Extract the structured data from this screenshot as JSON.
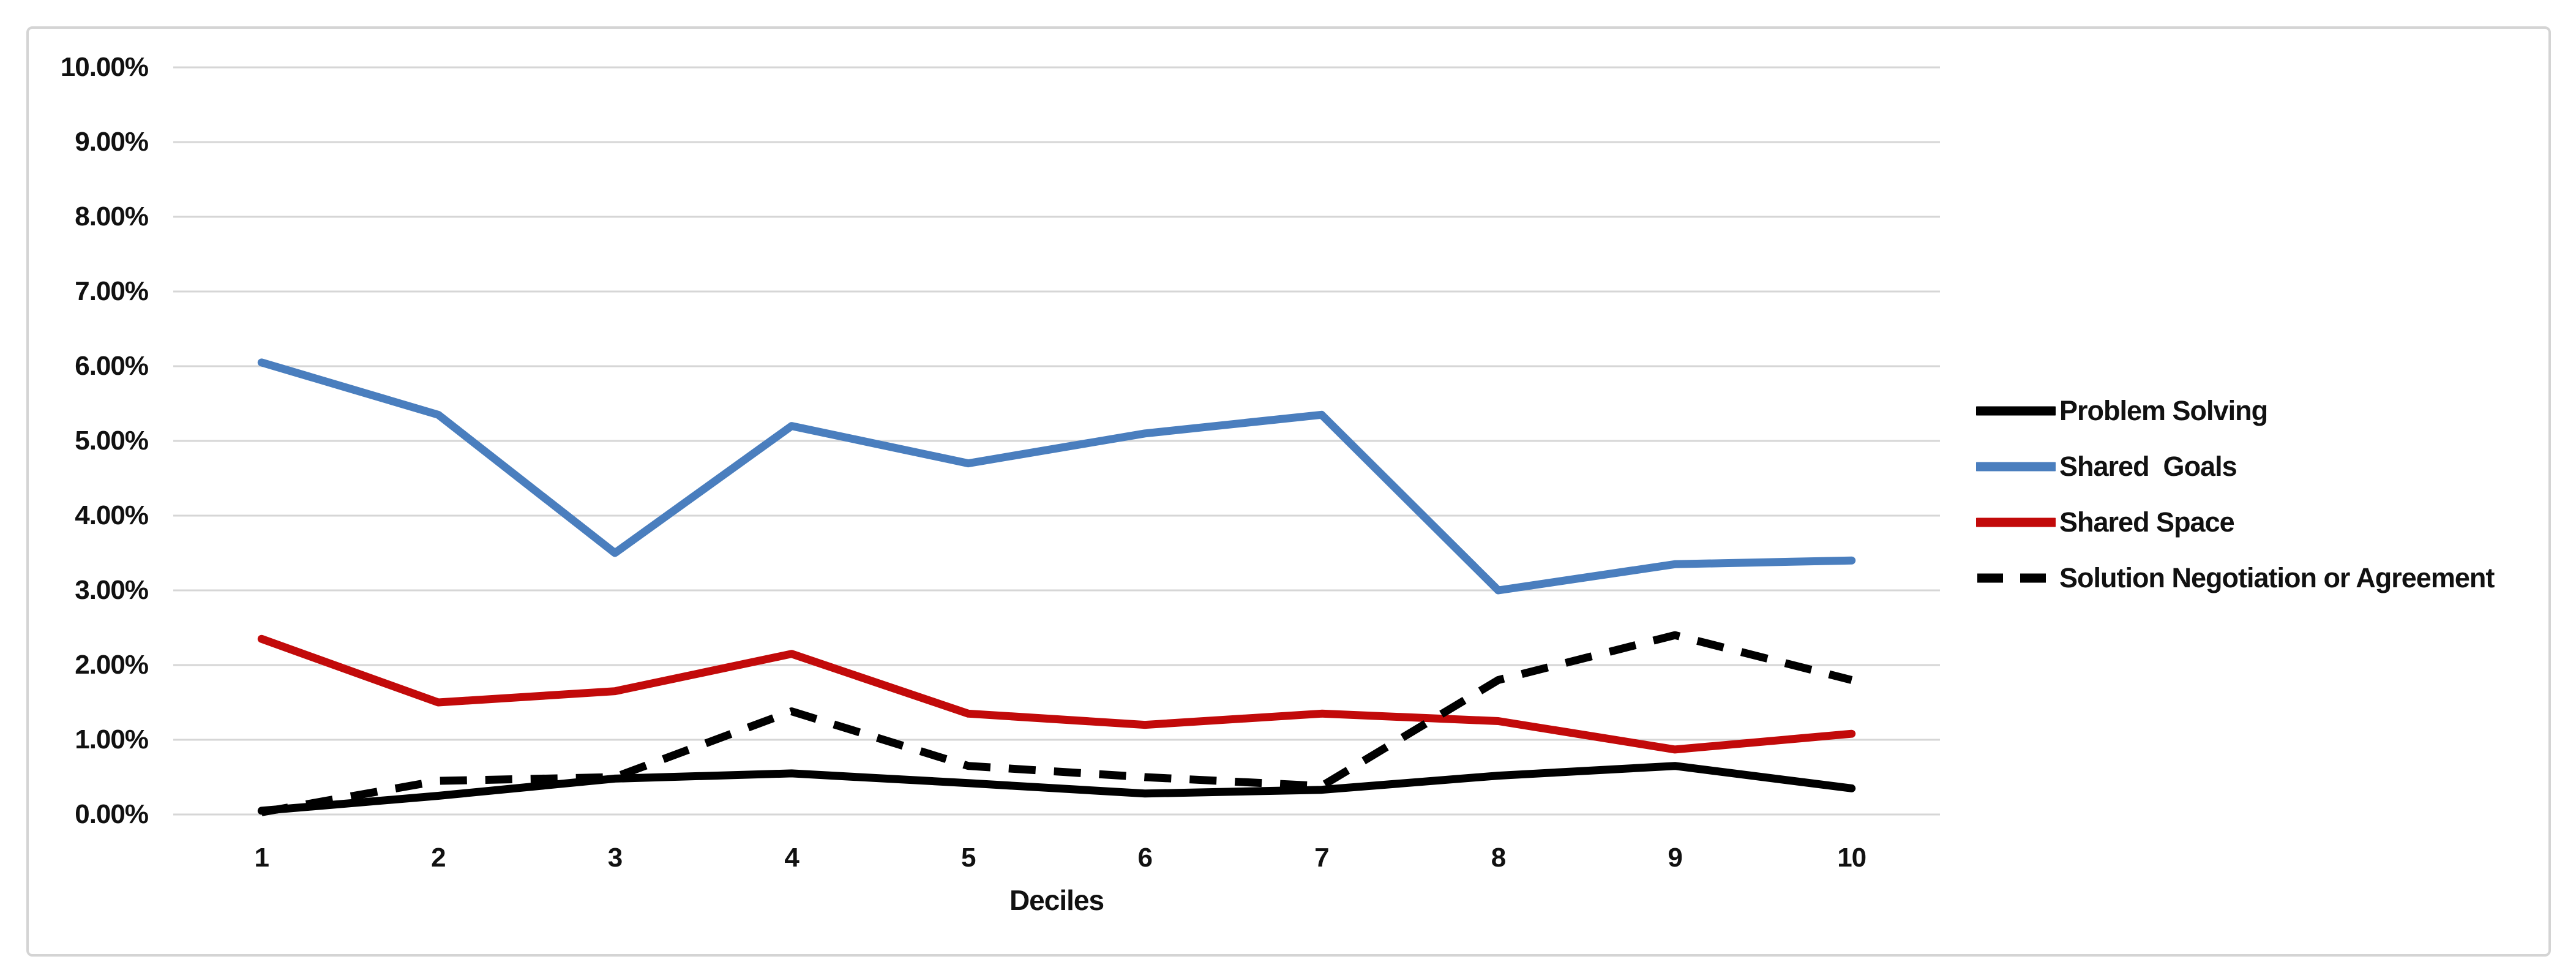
{
  "chart_data": {
    "type": "line",
    "title": "",
    "xlabel": "Deciles",
    "ylabel": "",
    "x": [
      1,
      2,
      3,
      4,
      5,
      6,
      7,
      8,
      9,
      10
    ],
    "x_tick_labels": [
      "1",
      "2",
      "3",
      "4",
      "5",
      "6",
      "7",
      "8",
      "9",
      "10"
    ],
    "y_axis": {
      "min": 0,
      "max": 10,
      "step": 1,
      "unit": "percent",
      "tick_labels": [
        "0.00%",
        "1.00%",
        "2.00%",
        "3.00%",
        "4.00%",
        "5.00%",
        "6.00%",
        "7.00%",
        "8.00%",
        "9.00%",
        "10.00%"
      ]
    },
    "grid": true,
    "legend_position": "right",
    "series": [
      {
        "name": "Problem Solving",
        "color": "#000000",
        "style": "solid",
        "values": [
          0.05,
          0.25,
          0.48,
          0.55,
          0.42,
          0.28,
          0.33,
          0.52,
          0.65,
          0.35
        ]
      },
      {
        "name": "Shared  Goals",
        "color": "#4a7ebe",
        "style": "solid",
        "values": [
          6.05,
          5.35,
          3.5,
          5.2,
          4.7,
          5.1,
          5.35,
          3.0,
          3.35,
          3.4
        ]
      },
      {
        "name": "Shared Space",
        "color": "#c20a0a",
        "style": "solid",
        "values": [
          2.35,
          1.5,
          1.65,
          2.15,
          1.35,
          1.2,
          1.35,
          1.25,
          0.87,
          1.08
        ]
      },
      {
        "name": "Solution Negotiation or Agreement",
        "color": "#000000",
        "style": "dashed",
        "values": [
          0.03,
          0.45,
          0.5,
          1.38,
          0.65,
          0.5,
          0.38,
          1.8,
          2.4,
          1.8
        ]
      }
    ]
  },
  "colors": {
    "gridline": "#d6d6d6",
    "frame_border": "#d4d4d4",
    "text": "#111111",
    "background": "#ffffff"
  }
}
